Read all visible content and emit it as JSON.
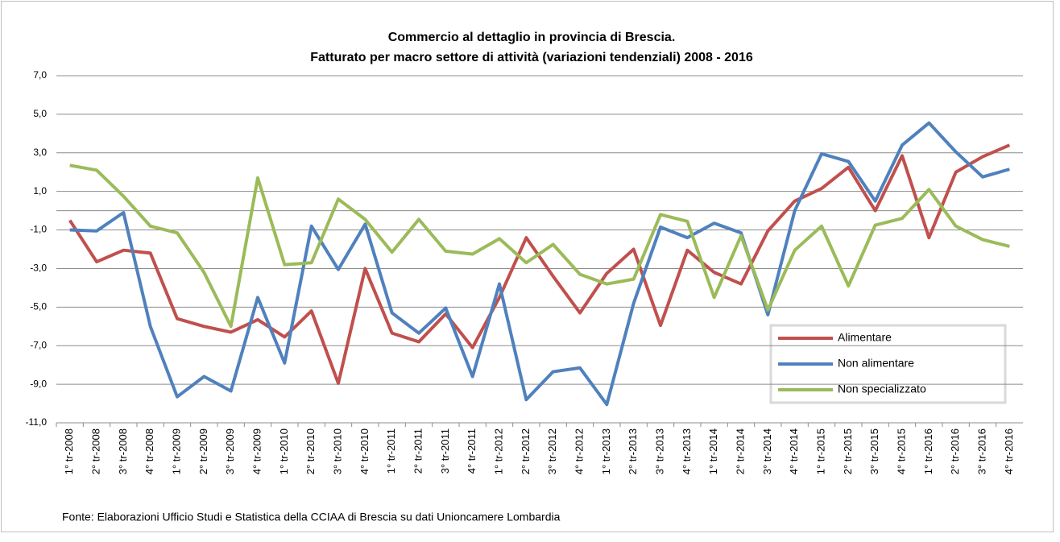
{
  "chart_data": {
    "type": "line",
    "title": "Commercio al dettaglio in provincia di Brescia.",
    "subtitle": "Fatturato per macro settore di attività (variazioni tendenziali) 2008  - 2016",
    "source": "Fonte: Elaborazioni Ufficio Studi e Statistica della CCIAA di Brescia su dati  Unioncamere  Lombardia",
    "categories": [
      "1° tr-2008",
      "2° tr-2008",
      "3° tr-2008",
      "4° tr-2008",
      "1° tr-2009",
      "2° tr-2009",
      "3° tr-2009",
      "4° tr-2009",
      "1° tr-2010",
      "2° tr-2010",
      "3° tr-2010",
      "4° tr-2010",
      "1° tr-2011",
      "2° tr-2011",
      "3° tr-2011",
      "4° tr-2011",
      "1° tr-2012",
      "2° tr-2012",
      "3° tr-2012",
      "4° tr-2012",
      "1° tr-2013",
      "2° tr-2013",
      "3° tr-2013",
      "4° tr-2013",
      "1° tr-2014",
      "2° tr-2014",
      "3° tr-2014",
      "4° tr-2014",
      "1° tr-2015",
      "2° tr-2015",
      "3° tr-2015",
      "4° tr-2015",
      "1° tr-2016",
      "2° tr-2016",
      "3° tr-2016",
      "4° tr-2016"
    ],
    "series": [
      {
        "name": "Alimentare",
        "color": "#c0504d",
        "values": [
          -0.5,
          -2.65,
          -2.05,
          -2.2,
          -5.6,
          -6.0,
          -6.3,
          -5.65,
          -6.55,
          -5.2,
          -8.95,
          -3.0,
          -6.35,
          -6.8,
          -5.35,
          -7.1,
          -4.5,
          -1.4,
          -3.4,
          -5.3,
          -3.25,
          -2.0,
          -5.95,
          -2.05,
          -3.2,
          -3.8,
          -1.05,
          0.5,
          1.15,
          2.25,
          0.0,
          2.85,
          -1.4,
          2.0,
          2.8,
          3.4
        ]
      },
      {
        "name": "Non alimentare",
        "color": "#4f81bd",
        "values": [
          -1.0,
          -1.05,
          -0.1,
          -6.0,
          -9.65,
          -8.6,
          -9.35,
          -4.5,
          -7.9,
          -0.8,
          -3.05,
          -0.7,
          -5.3,
          -6.35,
          -5.05,
          -8.6,
          -3.8,
          -9.8,
          -8.35,
          -8.15,
          -10.05,
          -4.8,
          -0.85,
          -1.4,
          -0.65,
          -1.15,
          -5.4,
          0.0,
          2.95,
          2.55,
          0.5,
          3.4,
          4.55,
          3.05,
          1.75,
          2.15
        ]
      },
      {
        "name": "Non specializzato",
        "color": "#9bbb59",
        "values": [
          2.35,
          2.1,
          0.75,
          -0.8,
          -1.15,
          -3.2,
          -6.0,
          1.7,
          -2.8,
          -2.7,
          0.6,
          -0.45,
          -2.15,
          -0.45,
          -2.1,
          -2.25,
          -1.45,
          -2.7,
          -1.75,
          -3.3,
          -3.8,
          -3.55,
          -0.2,
          -0.55,
          -4.5,
          -1.3,
          -5.15,
          -2.05,
          -0.8,
          -3.9,
          -0.75,
          -0.4,
          1.1,
          -0.8,
          -1.5,
          -1.85
        ]
      }
    ],
    "ylim": [
      -11,
      7
    ],
    "yticks": [
      {
        "value": -11,
        "label": "-11,0"
      },
      {
        "value": -9,
        "label": "-9,0"
      },
      {
        "value": -7,
        "label": "-7,0"
      },
      {
        "value": -5,
        "label": "-5,0"
      },
      {
        "value": -3,
        "label": "-3,0"
      },
      {
        "value": -1,
        "label": "-1,0"
      },
      {
        "value": 1,
        "label": "1,0"
      },
      {
        "value": 3,
        "label": "3,0"
      },
      {
        "value": 5,
        "label": "5,0"
      },
      {
        "value": 7,
        "label": "7,0"
      }
    ],
    "grid": true
  }
}
